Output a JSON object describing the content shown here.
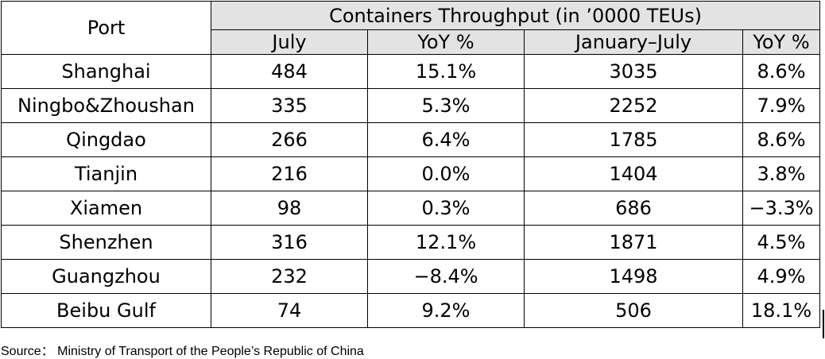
{
  "chart_data": {
    "type": "table",
    "header": {
      "port": "Port",
      "group": "Containers Throughput (in ’0000 TEUs)",
      "columns": [
        "July",
        "YoY %",
        "January–July",
        "YoY %"
      ]
    },
    "rows": [
      {
        "port": "Shanghai",
        "july": "484",
        "july_yoy": "15.1%",
        "jan_jul": "3035",
        "jan_jul_yoy": "8.6%"
      },
      {
        "port": "Ningbo&Zhoushan",
        "july": "335",
        "july_yoy": "5.3%",
        "jan_jul": "2252",
        "jan_jul_yoy": "7.9%"
      },
      {
        "port": "Qingdao",
        "july": "266",
        "july_yoy": "6.4%",
        "jan_jul": "1785",
        "jan_jul_yoy": "8.6%"
      },
      {
        "port": "Tianjin",
        "july": "216",
        "july_yoy": "0.0%",
        "jan_jul": "1404",
        "jan_jul_yoy": "3.8%"
      },
      {
        "port": "Xiamen",
        "july": "98",
        "july_yoy": "0.3%",
        "jan_jul": "686",
        "jan_jul_yoy": "−3.3%"
      },
      {
        "port": "Shenzhen",
        "july": "316",
        "july_yoy": "12.1%",
        "jan_jul": "1871",
        "jan_jul_yoy": "4.5%"
      },
      {
        "port": "Guangzhou",
        "july": "232",
        "july_yoy": "−8.4%",
        "jan_jul": "1498",
        "jan_jul_yoy": "4.9%"
      },
      {
        "port": "Beibu Gulf",
        "july": "74",
        "july_yoy": "9.2%",
        "jan_jul": "506",
        "jan_jul_yoy": "18.1%"
      }
    ],
    "source": "Source： Ministry of Transport of the People’s Republic of China"
  },
  "colors": {
    "header_fill": "#e3e3e3",
    "border": "#000000",
    "text": "#000000"
  }
}
